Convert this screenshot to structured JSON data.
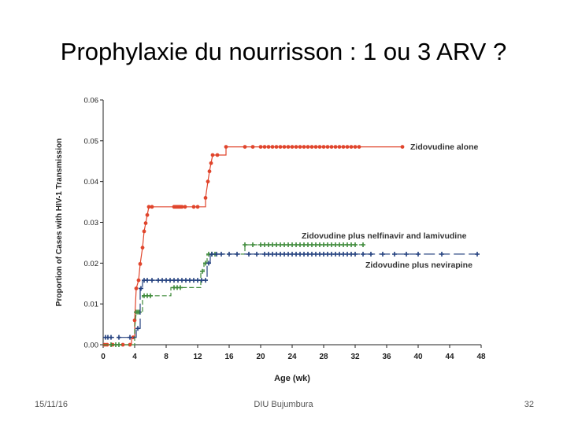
{
  "slide": {
    "title": "Prophylaxie du nourrisson : 1 ou 3 ARV ?",
    "footer_date": "15/11/16",
    "footer_center": "DIU Bujumbura",
    "page_number": "32"
  },
  "chart_data": {
    "type": "line",
    "title": "",
    "xlabel": "Age (wk)",
    "ylabel": "Proportion of Cases with HIV-1 Transmission",
    "xlim": [
      0,
      48
    ],
    "ylim": [
      0,
      0.06
    ],
    "xticks": [
      "0",
      "4",
      "8",
      "12",
      "16",
      "20",
      "24",
      "28",
      "32",
      "36",
      "40",
      "44",
      "48"
    ],
    "yticks": [
      "0.00",
      "0.01",
      "0.02",
      "0.03",
      "0.04",
      "0.05",
      "0.06"
    ],
    "grid": false,
    "legend": "inline labels at line ends",
    "series": [
      {
        "name": "Zidovudine alone",
        "color": "#e0452c",
        "dash": "solid",
        "points": [
          [
            0,
            0.0
          ],
          [
            3.6,
            0.0
          ],
          [
            3.6,
            0.0018
          ],
          [
            4.0,
            0.0018
          ],
          [
            4.0,
            0.006
          ],
          [
            4.2,
            0.0138
          ],
          [
            4.5,
            0.0158
          ],
          [
            4.7,
            0.0198
          ],
          [
            5.0,
            0.0238
          ],
          [
            5.2,
            0.0278
          ],
          [
            5.4,
            0.0298
          ],
          [
            5.6,
            0.0318
          ],
          [
            5.8,
            0.0338
          ],
          [
            13.0,
            0.0338
          ],
          [
            13.0,
            0.036
          ],
          [
            13.3,
            0.04
          ],
          [
            13.5,
            0.0425
          ],
          [
            13.7,
            0.0445
          ],
          [
            13.9,
            0.0465
          ],
          [
            15.6,
            0.0465
          ],
          [
            15.6,
            0.0485
          ],
          [
            38,
            0.0485
          ]
        ],
        "markers": [
          0.2,
          0.5,
          1.2,
          2.5,
          3.4,
          3.8,
          4.0,
          4.2,
          4.5,
          4.7,
          5.0,
          5.2,
          5.4,
          5.6,
          5.8,
          6.2,
          9.0,
          9.2,
          9.4,
          9.6,
          9.8,
          10.0,
          10.4,
          11.5,
          12.0,
          13.0,
          13.3,
          13.5,
          13.7,
          13.9,
          14.5,
          15.6,
          18.0,
          19.0,
          20.0,
          20.5,
          21.0,
          21.5,
          22.0,
          22.5,
          23.0,
          23.5,
          24.0,
          24.5,
          25.0,
          25.5,
          26.0,
          26.5,
          27.0,
          27.5,
          28.0,
          28.5,
          29.0,
          29.5,
          30.0,
          30.5,
          31.0,
          31.5,
          32.0,
          32.5,
          38.0
        ],
        "end_label": "Zidovudine alone"
      },
      {
        "name": "Zidovudine plus nelfinavir and lamivudine",
        "color": "#3e8a3a",
        "dash": "dashed",
        "points": [
          [
            0,
            0.0
          ],
          [
            4.0,
            0.0
          ],
          [
            4.0,
            0.004
          ],
          [
            4.2,
            0.008
          ],
          [
            5.0,
            0.008
          ],
          [
            5.0,
            0.012
          ],
          [
            8.6,
            0.012
          ],
          [
            8.6,
            0.014
          ],
          [
            12.4,
            0.014
          ],
          [
            12.4,
            0.018
          ],
          [
            12.8,
            0.018
          ],
          [
            12.8,
            0.02
          ],
          [
            13.2,
            0.02
          ],
          [
            13.2,
            0.0222
          ],
          [
            18,
            0.0222
          ],
          [
            18,
            0.0245
          ],
          [
            33,
            0.0245
          ]
        ],
        "markers": [
          1.0,
          1.6,
          2.0,
          4.2,
          4.4,
          4.6,
          5.2,
          5.6,
          6.0,
          9.0,
          9.4,
          9.8,
          12.6,
          13.0,
          13.4,
          13.8,
          14.2,
          18.0,
          19.0,
          20.0,
          20.5,
          21.0,
          21.5,
          22.0,
          22.5,
          23.0,
          23.5,
          24.0,
          24.5,
          25.0,
          25.5,
          26.0,
          26.5,
          27.0,
          27.5,
          28.0,
          28.5,
          29.0,
          29.5,
          30.0,
          30.5,
          31.0,
          31.5,
          32.0,
          33.0
        ],
        "end_label": "Zidovudine plus nelfinavir and lamivudine"
      },
      {
        "name": "Zidovudine plus nevirapine",
        "color": "#23407f",
        "dash": "longdash",
        "points": [
          [
            0,
            0.0018
          ],
          [
            4.2,
            0.0018
          ],
          [
            4.2,
            0.004
          ],
          [
            4.7,
            0.004
          ],
          [
            4.7,
            0.0138
          ],
          [
            5.0,
            0.0138
          ],
          [
            5.0,
            0.0158
          ],
          [
            13.2,
            0.0158
          ],
          [
            13.2,
            0.02
          ],
          [
            13.6,
            0.02
          ],
          [
            13.6,
            0.0222
          ],
          [
            47.5,
            0.0222
          ]
        ],
        "markers": [
          0.3,
          0.6,
          1.0,
          2.0,
          3.4,
          4.4,
          4.8,
          5.2,
          5.6,
          6.2,
          7.0,
          7.5,
          8.0,
          8.5,
          9.0,
          9.5,
          10.0,
          10.5,
          11.0,
          11.5,
          12.0,
          12.5,
          13.0,
          13.4,
          13.8,
          14.4,
          15.0,
          16.0,
          17.0,
          18.5,
          19.5,
          20.5,
          21.0,
          21.5,
          22.0,
          22.5,
          23.0,
          23.5,
          24.0,
          24.5,
          25.0,
          25.5,
          26.0,
          26.5,
          27.0,
          27.5,
          28.0,
          28.5,
          29.0,
          29.5,
          30.0,
          30.5,
          31.0,
          31.5,
          32.0,
          33.0,
          34.0,
          35.5,
          37.0,
          38.5,
          40.0,
          43.0,
          47.5
        ],
        "end_label": "Zidovudine plus nevirapine"
      }
    ]
  }
}
